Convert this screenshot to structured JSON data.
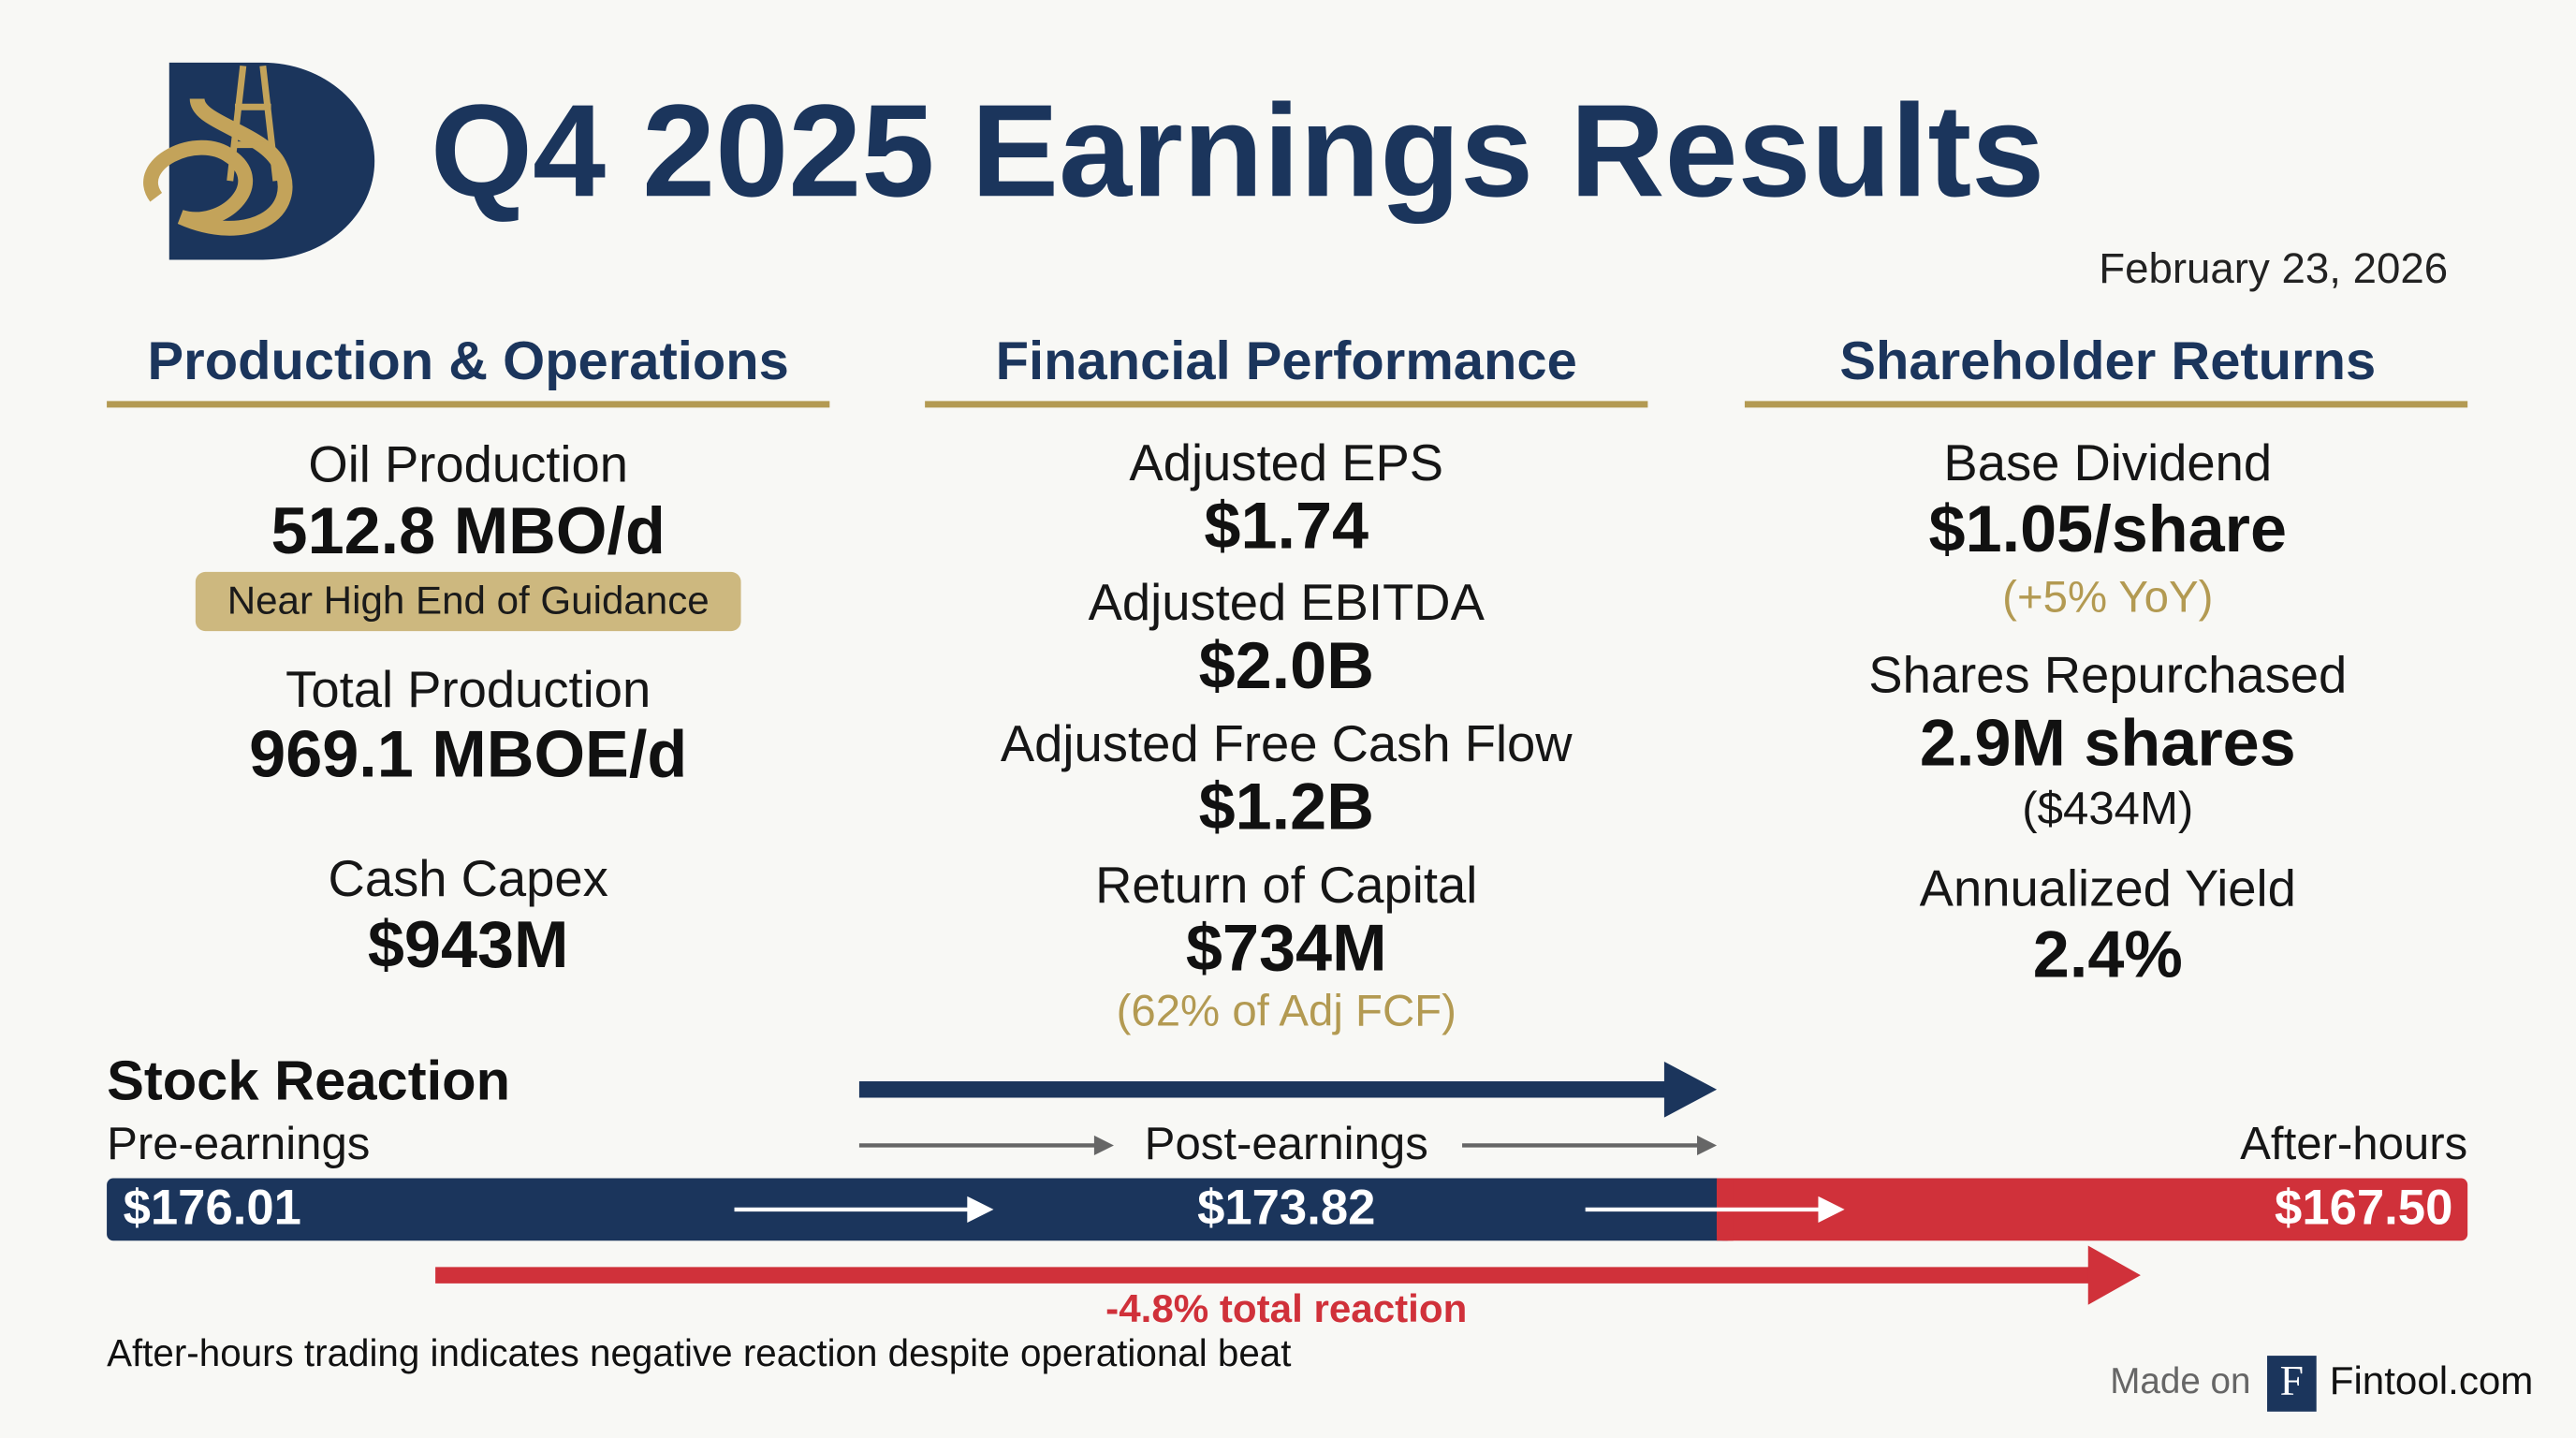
{
  "header": {
    "title": "Q4 2025 Earnings Results",
    "date": "February 23, 2026"
  },
  "sections": [
    {
      "title": "Production & Operations",
      "items": [
        {
          "label": "Oil Production",
          "value": "512.8 MBO/d",
          "note": "Near High End of Guidance"
        },
        {
          "label": "Total Production",
          "value": "969.1 MBOE/d"
        },
        {
          "label": "Cash Capex",
          "value": "$943M"
        }
      ]
    },
    {
      "title": "Financial Performance",
      "items": [
        {
          "label": "Adjusted EPS",
          "value": "$1.74"
        },
        {
          "label": "Adjusted EBITDA",
          "value": "$2.0B"
        },
        {
          "label": "Adjusted Free Cash Flow",
          "value": "$1.2B"
        },
        {
          "label": "Return of Capital",
          "value": "$734M",
          "note": "(62% of Adj FCF)"
        }
      ]
    },
    {
      "title": "Shareholder Returns",
      "items": [
        {
          "label": "Base Dividend",
          "value": "$1.05/share",
          "note": "(+5% YoY)"
        },
        {
          "label": "Shares Repurchased",
          "value": "2.9M shares",
          "note": "($434M)"
        },
        {
          "label": "Annualized Yield",
          "value": "2.4%"
        }
      ]
    }
  ],
  "stock": {
    "title": "Stock Reaction",
    "pre": {
      "label": "Pre-earnings",
      "price": "$176.01"
    },
    "post": {
      "label": "Post-earnings",
      "price": "$173.82"
    },
    "after": {
      "label": "After-hours",
      "price": "$167.50"
    },
    "total": "-4.8% total reaction"
  },
  "footer": {
    "note": "After-hours trading indicates negative reaction despite operational beat",
    "made_on": "Made on",
    "brand": "Fintool.com"
  }
}
